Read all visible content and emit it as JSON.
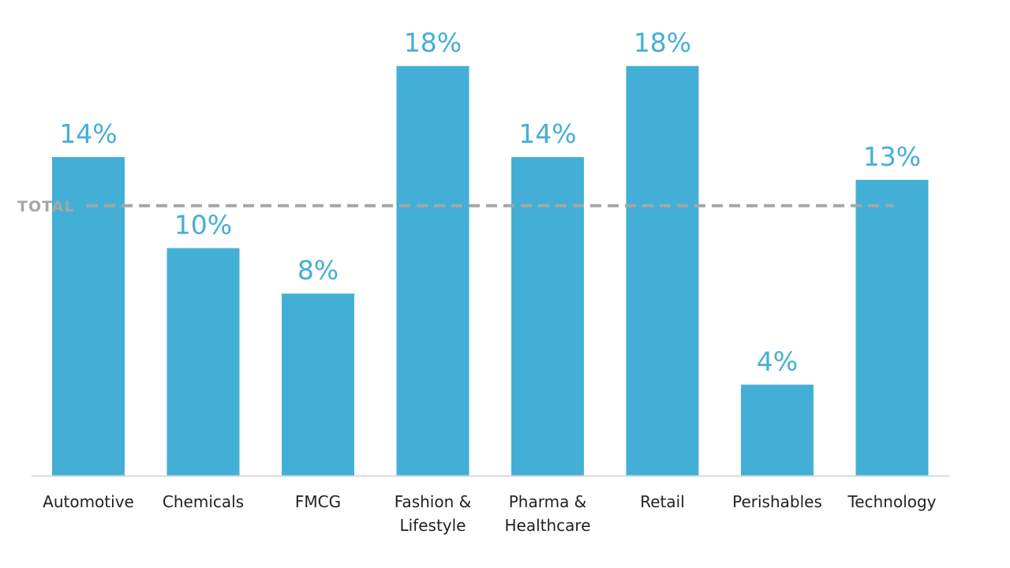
{
  "chart_data": {
    "type": "bar",
    "categories": [
      [
        "Automotive"
      ],
      [
        "Chemicals"
      ],
      [
        "FMCG"
      ],
      [
        "Fashion &",
        "Lifestyle"
      ],
      [
        "Pharma &",
        "Healthcare"
      ],
      [
        "Retail"
      ],
      [
        "Perishables"
      ],
      [
        "Technology"
      ]
    ],
    "values": [
      14,
      10,
      8,
      18,
      14,
      18,
      4,
      13
    ],
    "data_labels": [
      "14%",
      "10%",
      "8%",
      "18%",
      "14%",
      "18%",
      "4%",
      "13%"
    ],
    "reference_line": {
      "label": "TOTAL",
      "value": 12,
      "style": "dashed"
    },
    "ylim": [
      0,
      18
    ],
    "grid": false,
    "legend": "none"
  },
  "colors": {
    "bar": "#44afd6",
    "value_label": "#44afd6",
    "reference_line": "#a6a6a6",
    "axis": "#d9d9d9",
    "category_label": "#222222"
  }
}
